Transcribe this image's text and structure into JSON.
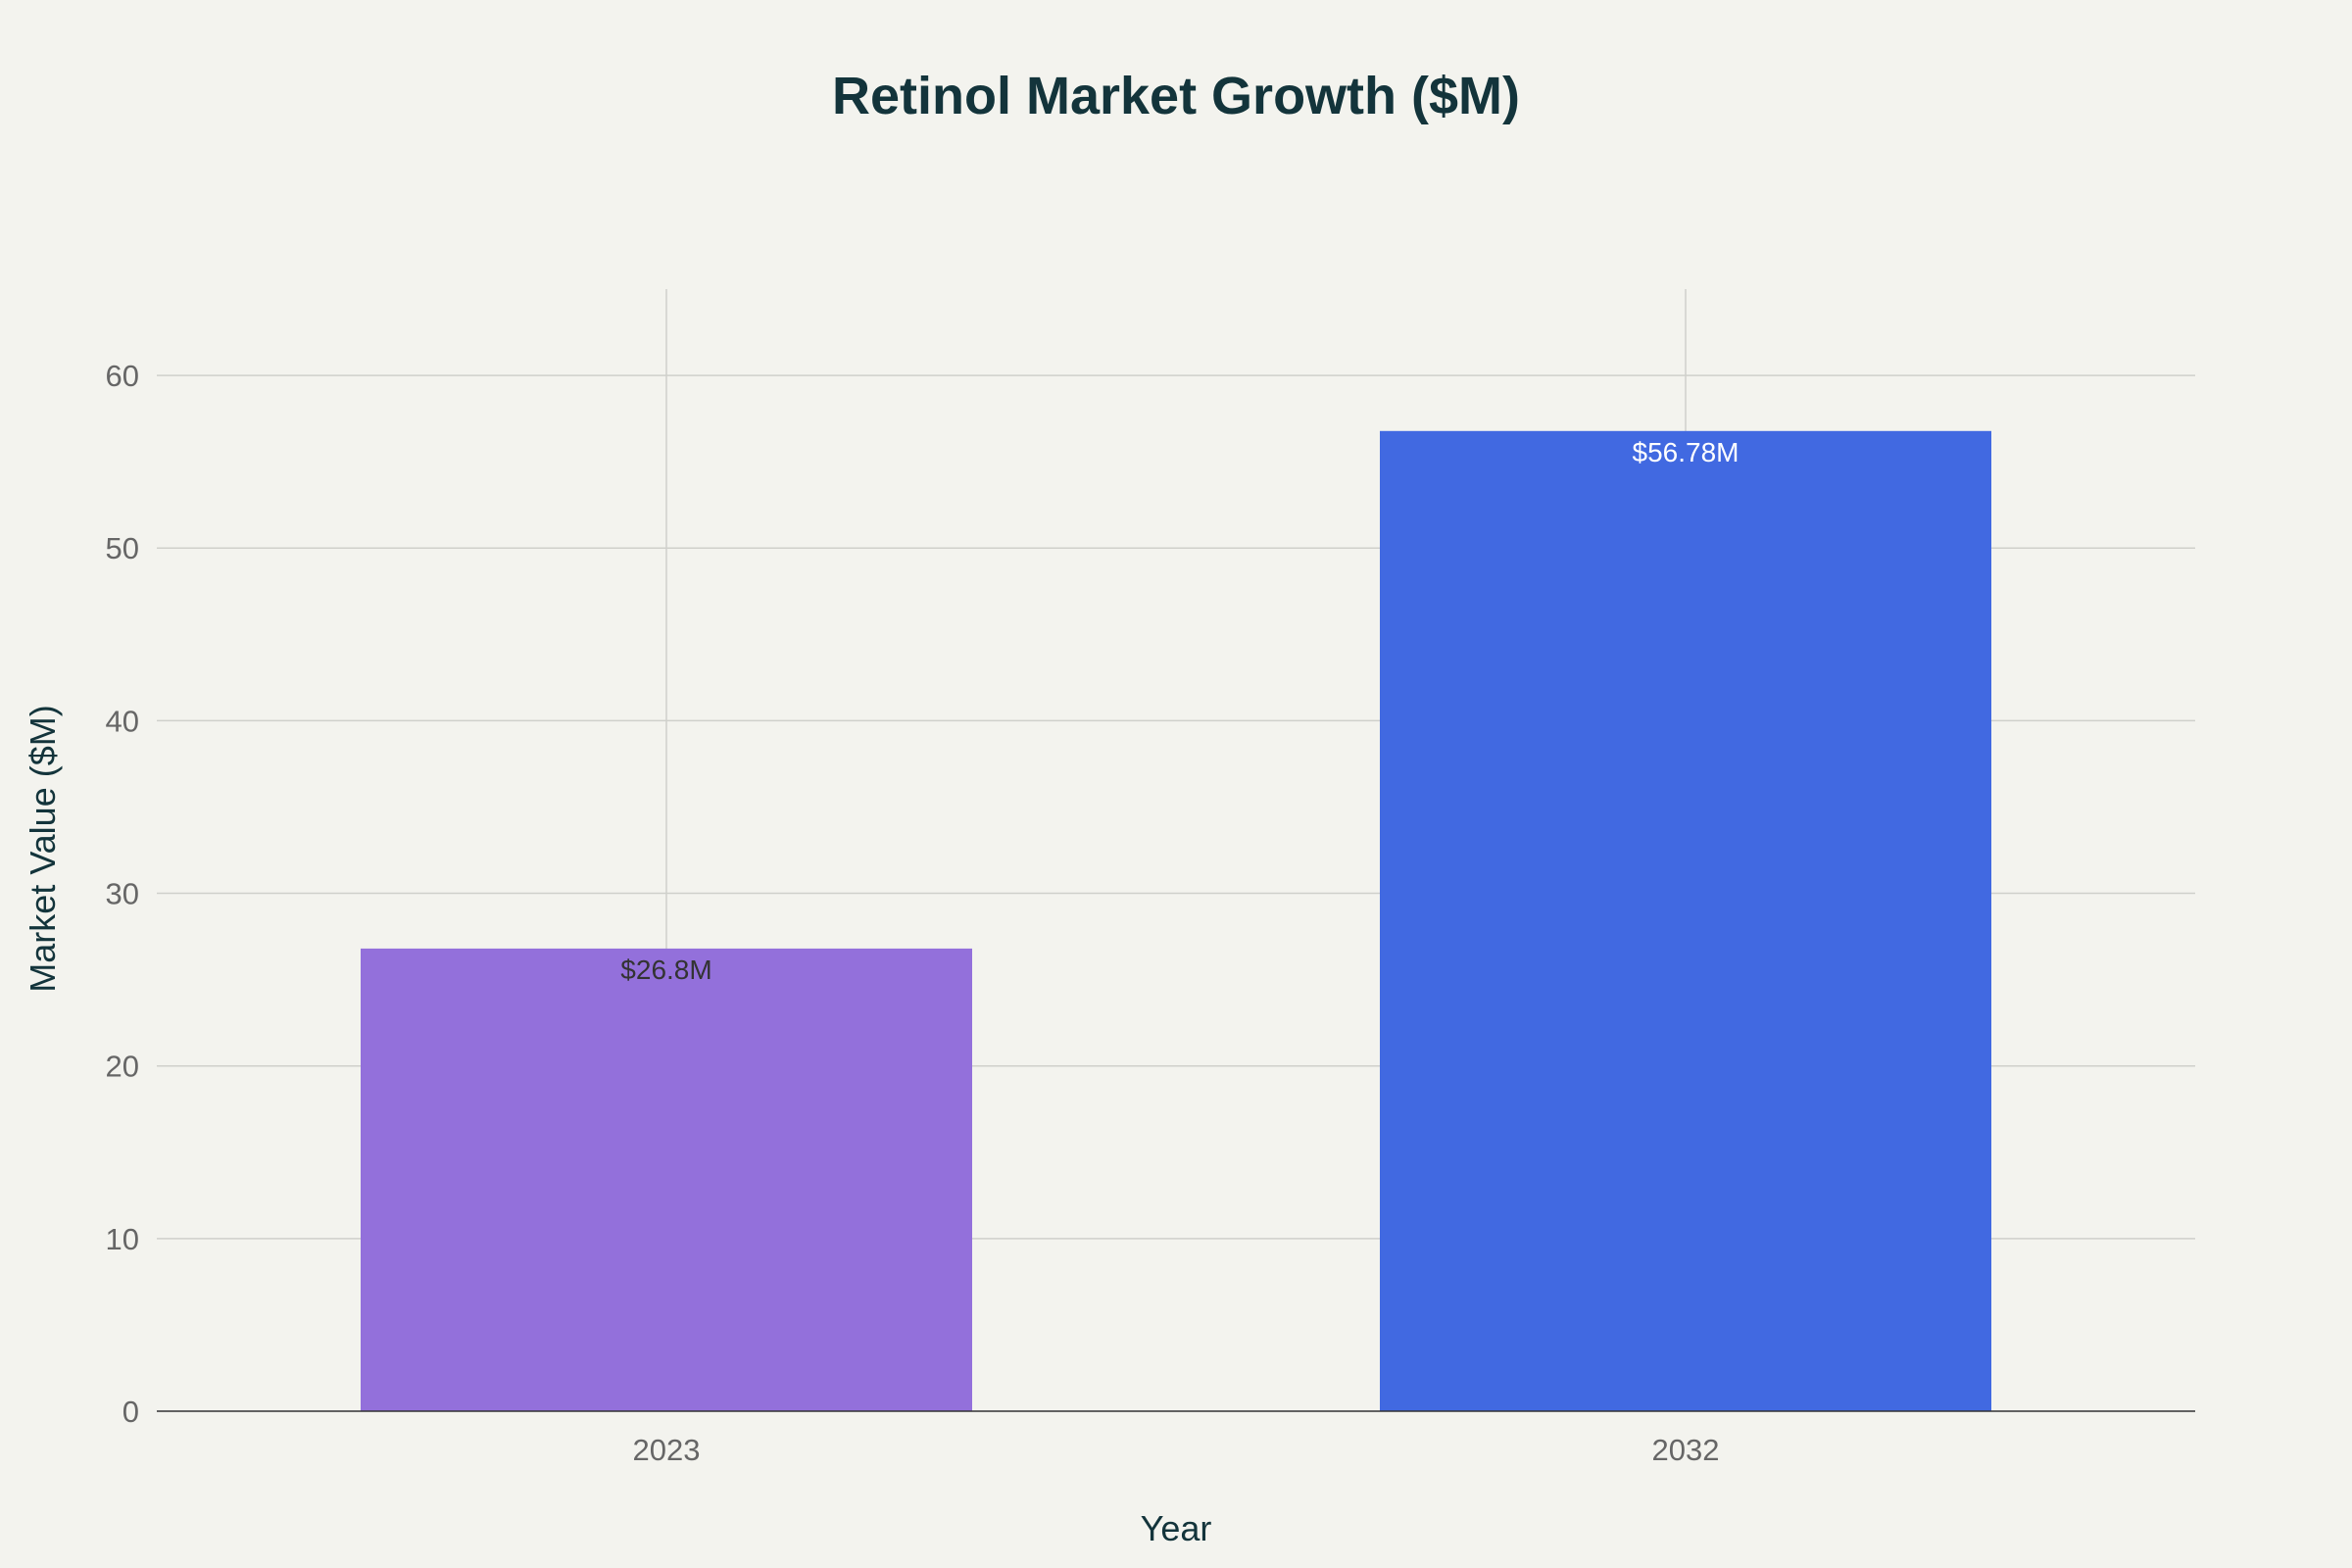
{
  "chart_data": {
    "type": "bar",
    "title": "Retinol Market Growth ($M)",
    "xlabel": "Year",
    "ylabel": "Market Value ($M)",
    "categories": [
      "2023",
      "2032"
    ],
    "values": [
      26.8,
      56.78
    ],
    "data_labels": [
      "$26.8M",
      "$56.78M"
    ],
    "bar_colors": [
      "#9370db",
      "#4169e1"
    ],
    "data_label_colors": [
      "#333333",
      "#ffffff"
    ],
    "ylim": [
      0,
      65
    ],
    "yticks": [
      0,
      10,
      20,
      30,
      40,
      50,
      60
    ],
    "grid": true,
    "legend": "none"
  }
}
